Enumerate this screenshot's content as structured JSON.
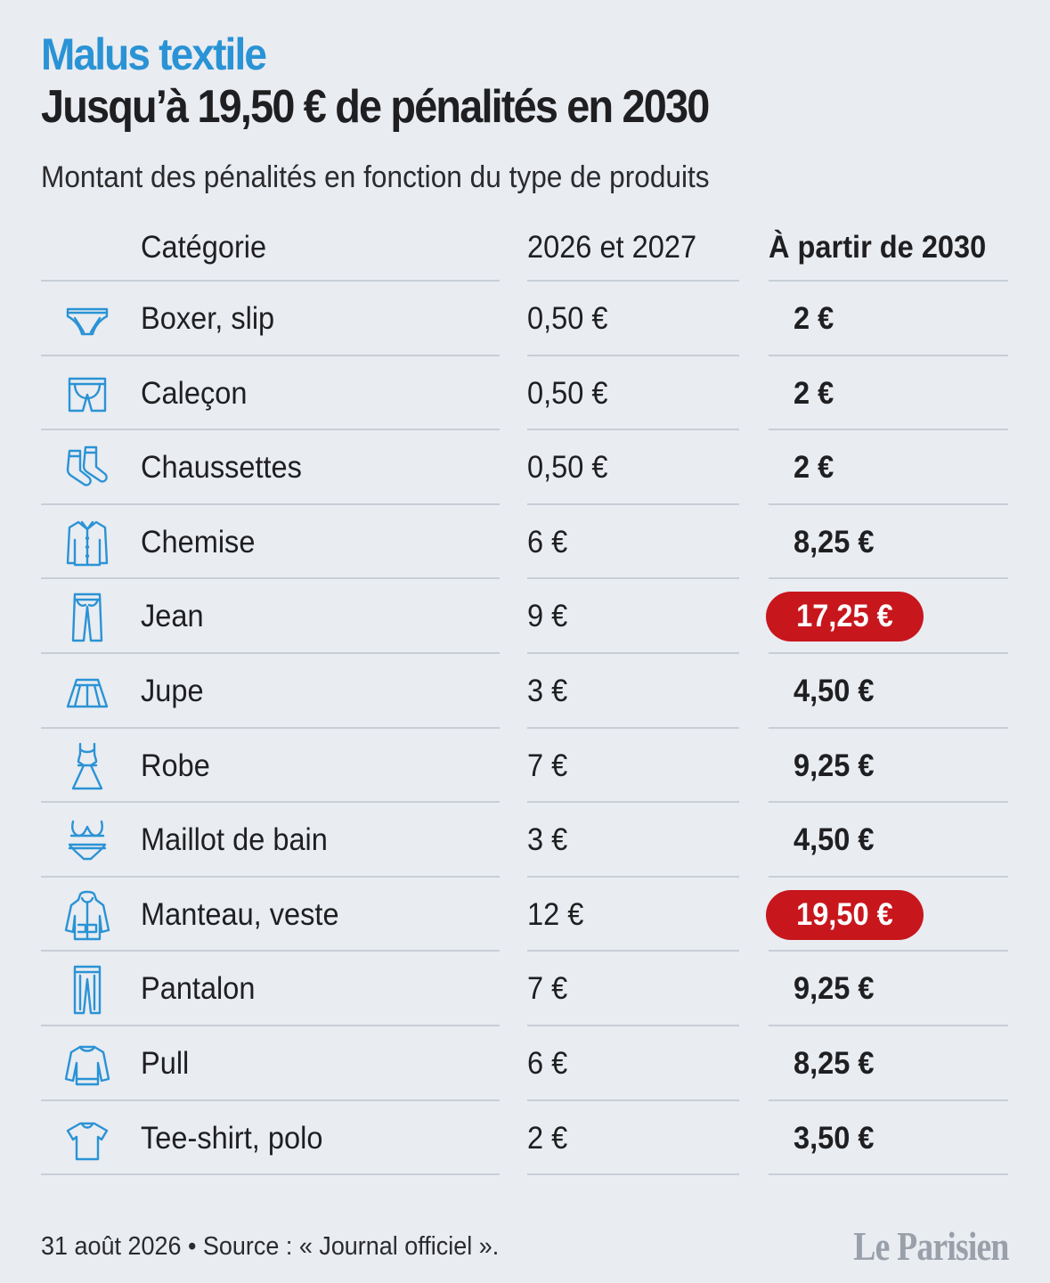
{
  "header": {
    "kicker": "Malus textile",
    "title": "Jusqu’à 19,50 € de pénalités en 2030",
    "subtitle": "Montant des pénalités en fonction du type de produits"
  },
  "chart_data": {
    "type": "table",
    "columns": [
      "Catégorie",
      "2026 et 2027",
      "À partir de 2030"
    ],
    "highlight_color": "#c8161d",
    "accent_color": "#2a93d5",
    "rows": [
      {
        "icon": "briefs-icon",
        "category": "Boxer, slip",
        "v2026_2027": "0,50 €",
        "v2030": "2 €",
        "highlight": false
      },
      {
        "icon": "boxer-shorts-icon",
        "category": "Caleçon",
        "v2026_2027": "0,50 €",
        "v2030": "2 €",
        "highlight": false
      },
      {
        "icon": "socks-icon",
        "category": "Chaussettes",
        "v2026_2027": "0,50 €",
        "v2030": "2 €",
        "highlight": false
      },
      {
        "icon": "shirt-icon",
        "category": "Chemise",
        "v2026_2027": "6 €",
        "v2030": "8,25 €",
        "highlight": false
      },
      {
        "icon": "jeans-icon",
        "category": "Jean",
        "v2026_2027": "9 €",
        "v2030": "17,25 €",
        "highlight": true
      },
      {
        "icon": "skirt-icon",
        "category": "Jupe",
        "v2026_2027": "3 €",
        "v2030": "4,50 €",
        "highlight": false
      },
      {
        "icon": "dress-icon",
        "category": "Robe",
        "v2026_2027": "7 €",
        "v2030": "9,25 €",
        "highlight": false
      },
      {
        "icon": "bikini-icon",
        "category": "Maillot de bain",
        "v2026_2027": "3 €",
        "v2030": "4,50 €",
        "highlight": false
      },
      {
        "icon": "coat-icon",
        "category": "Manteau, veste",
        "v2026_2027": "12 €",
        "v2030": "19,50 €",
        "highlight": true
      },
      {
        "icon": "trousers-icon",
        "category": "Pantalon",
        "v2026_2027": "7 €",
        "v2030": "9,25 €",
        "highlight": false
      },
      {
        "icon": "sweater-icon",
        "category": "Pull",
        "v2026_2027": "6 €",
        "v2030": "8,25 €",
        "highlight": false
      },
      {
        "icon": "tshirt-icon",
        "category": "Tee-shirt, polo",
        "v2026_2027": "2 €",
        "v2030": "3,50 €",
        "highlight": false
      }
    ]
  },
  "footer": {
    "source": "31 août 2026 • Source : « Journal officiel ».",
    "logo": "Le Parisien"
  }
}
